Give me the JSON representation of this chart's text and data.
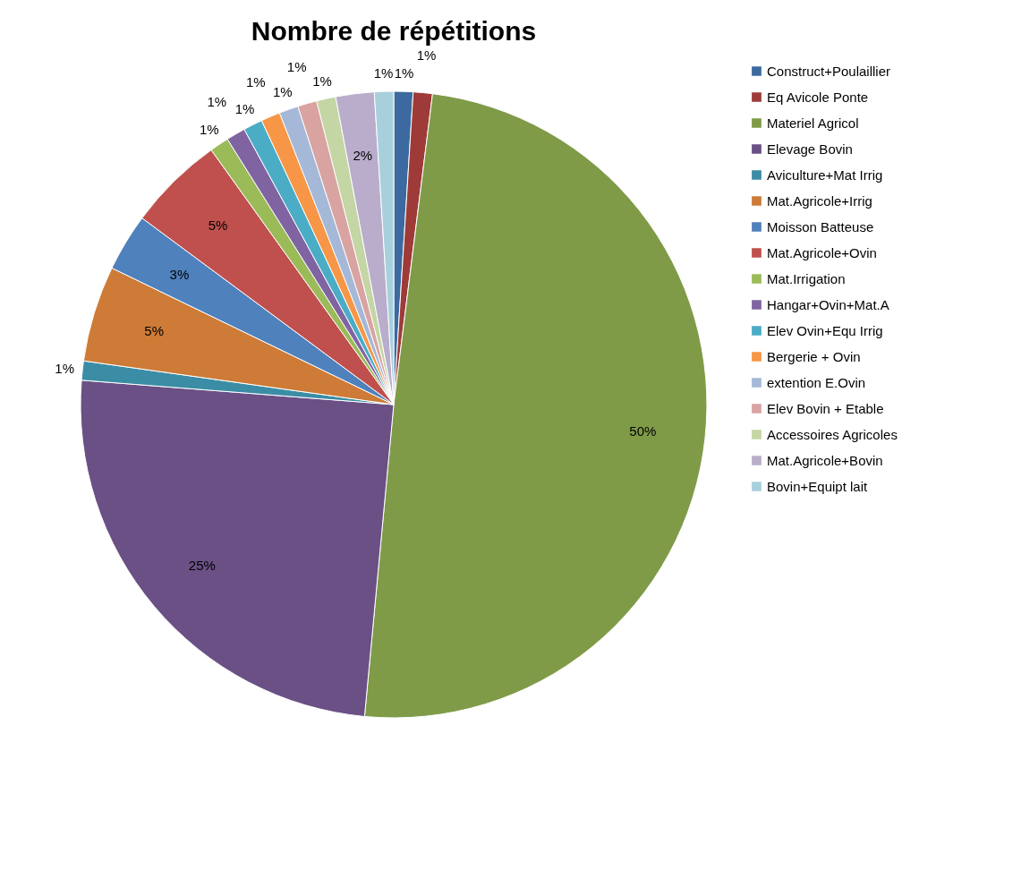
{
  "chart_data": {
    "type": "pie",
    "title": "Nombre de répétitions",
    "categories": [
      "Construct+Poulaillier",
      "Eq Avicole Ponte",
      "Materiel Agricol",
      "Elevage Bovin",
      "Aviculture+Mat Irrig",
      "Mat.Agricole+Irrig",
      "Moisson Batteuse",
      "Mat.Agricole+Ovin",
      "Mat.Irrigation",
      "Hangar+Ovin+Mat.A",
      "Elev Ovin+Equ Irrig",
      "Bergerie + Ovin",
      "extention E.Ovin",
      "Elev Bovin + Etable",
      "Accessoires Agricoles",
      "Mat.Agricole+Bovin",
      "Bovin+Equipt lait"
    ],
    "values": [
      1,
      1,
      50,
      25,
      1,
      5,
      3,
      5,
      1,
      1,
      1,
      1,
      1,
      1,
      1,
      2,
      1
    ],
    "value_labels": [
      "1%",
      "1%",
      "50%",
      "25%",
      "1%",
      "5%",
      "3%",
      "5%",
      "1%",
      "1%",
      "1%",
      "1%",
      "1%",
      "1%",
      "1%",
      "2%",
      "1%"
    ],
    "colors": [
      "#3c6aa0",
      "#9e3b38",
      "#7f9b48",
      "#6a5085",
      "#3b8da5",
      "#cd7b37",
      "#4f81bd",
      "#c0504d",
      "#9bbb59",
      "#8064a2",
      "#4bacc6",
      "#f79646",
      "#a5b8d7",
      "#d9a3a2",
      "#c3d6a4",
      "#b9adcb",
      "#a7d0dc"
    ],
    "legend": "right"
  }
}
